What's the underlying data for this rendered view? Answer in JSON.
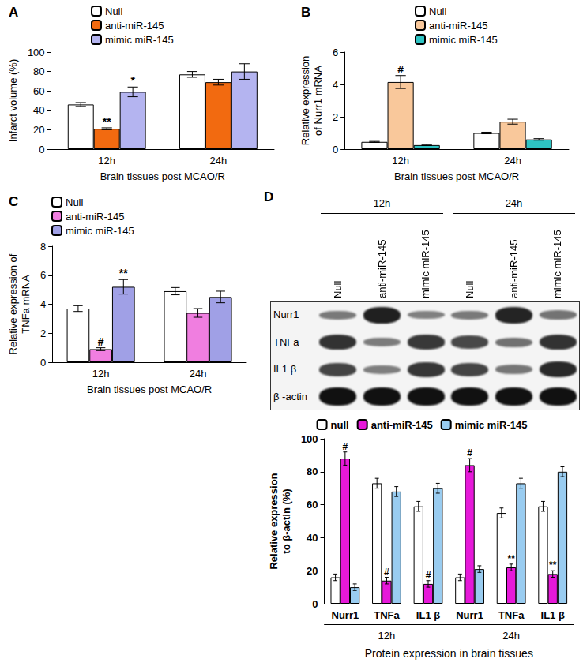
{
  "chart_data": [
    {
      "type": "bar",
      "title": "A",
      "categories": [
        "12h",
        "24h"
      ],
      "x_label": "Brain tissues post MCAO/R",
      "y_label": "Infarct volume (%)",
      "ylim": [
        0,
        100
      ],
      "yticks": [
        0,
        20,
        40,
        60,
        80,
        100
      ],
      "grid": false,
      "legend": "top-left",
      "series": [
        {
          "name": "Null",
          "color": "#ffffff",
          "values": [
            46,
            77
          ],
          "errors": [
            2,
            3
          ],
          "annotations": [
            null,
            null
          ]
        },
        {
          "name": "anti-miR-145",
          "color": "#f26a10",
          "values": [
            21,
            69
          ],
          "errors": [
            1,
            3
          ],
          "annotations": [
            "**",
            null
          ]
        },
        {
          "name": "mimic miR-145",
          "color": "#b4b4f0",
          "values": [
            59,
            80
          ],
          "errors": [
            5,
            8
          ],
          "annotations": [
            "*",
            null
          ]
        }
      ]
    },
    {
      "type": "bar",
      "title": "B",
      "categories": [
        "12h",
        "24h"
      ],
      "x_label": "Brain tissues post MCAO/R",
      "y_label": "Relative expression\nof Nurr1 mRNA",
      "ylim": [
        0,
        6
      ],
      "yticks": [
        0,
        2,
        4,
        6
      ],
      "grid": false,
      "legend": "top-left",
      "series": [
        {
          "name": "Null",
          "color": "#ffffff",
          "values": [
            0.45,
            1.0
          ],
          "errors": [
            0.03,
            0.05
          ],
          "annotations": [
            null,
            null
          ]
        },
        {
          "name": "anti-miR-145",
          "color": "#f9c89b",
          "values": [
            4.15,
            1.7
          ],
          "errors": [
            0.4,
            0.15
          ],
          "annotations": [
            "#",
            null
          ]
        },
        {
          "name": "mimic miR-145",
          "color": "#2ec4c4",
          "values": [
            0.25,
            0.6
          ],
          "errors": [
            0.03,
            0.05
          ],
          "annotations": [
            null,
            null
          ]
        }
      ]
    },
    {
      "type": "bar",
      "title": "C",
      "categories": [
        "12h",
        "24h"
      ],
      "x_label": "Brain tissues post MCAO/R",
      "y_label": "Relative expression of\nTNFa mRNA",
      "ylim": [
        0,
        8
      ],
      "yticks": [
        0,
        2,
        4,
        6,
        8
      ],
      "grid": false,
      "legend": "top-left",
      "series": [
        {
          "name": "Null",
          "color": "#ffffff",
          "values": [
            3.7,
            4.9
          ],
          "errors": [
            0.2,
            0.25
          ],
          "annotations": [
            null,
            null
          ]
        },
        {
          "name": "anti-miR-145",
          "color": "#f07ee0",
          "values": [
            0.9,
            3.4
          ],
          "errors": [
            0.1,
            0.3
          ],
          "annotations": [
            "#",
            null
          ]
        },
        {
          "name": "mimic miR-145",
          "color": "#a0a0e6",
          "values": [
            5.2,
            4.5
          ],
          "errors": [
            0.5,
            0.4
          ],
          "annotations": [
            "**",
            null
          ]
        }
      ]
    },
    {
      "type": "bar",
      "categories": [
        "Nurr1",
        "TNFa",
        "IL1 β",
        "Nurr1",
        "TNFa",
        "IL1 β"
      ],
      "group_labels": [
        "12h",
        "24h"
      ],
      "x_label": "Protein expression in brain tissues",
      "y_label": "Relative expression\nto β-actin (%)",
      "ylim": [
        0,
        100
      ],
      "yticks": [
        0,
        20,
        40,
        60,
        80,
        100
      ],
      "grid": false,
      "legend": "top",
      "series": [
        {
          "name": "null",
          "color": "#ffffff",
          "values": [
            16,
            73,
            59,
            16,
            55,
            59
          ],
          "errors": [
            2,
            3,
            3,
            2,
            3,
            3
          ],
          "annotations": [
            null,
            null,
            null,
            null,
            null,
            null
          ]
        },
        {
          "name": "anti-miR-145",
          "color": "#e619d9",
          "values": [
            88,
            14,
            12,
            84,
            22,
            18
          ],
          "errors": [
            4,
            2,
            2,
            4,
            2,
            2
          ],
          "annotations": [
            "#",
            "#",
            "#",
            "#",
            "**",
            "**"
          ]
        },
        {
          "name": "mimic miR-145",
          "color": "#99ccf0",
          "values": [
            10,
            68,
            70,
            21,
            73,
            80
          ],
          "errors": [
            2,
            3,
            3,
            2,
            3,
            3
          ],
          "annotations": [
            null,
            null,
            null,
            null,
            null,
            null
          ]
        }
      ]
    }
  ],
  "blot": {
    "panel": "D",
    "time_labels": [
      "12h",
      "24h"
    ],
    "lane_labels": [
      "Null",
      "anti-miR-145",
      "mimic miR-145"
    ],
    "row_labels": [
      "Nurr1",
      "TNFa",
      "IL1 β",
      "β -actin"
    ]
  }
}
